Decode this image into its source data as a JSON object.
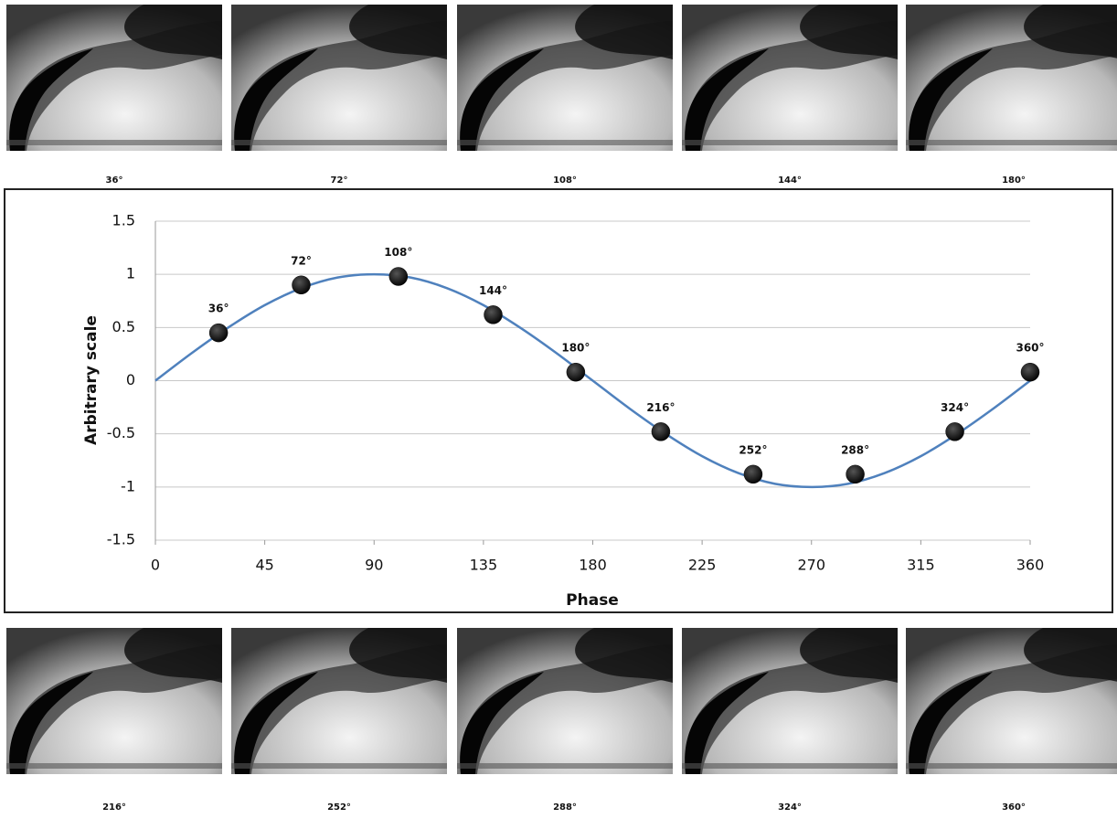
{
  "photo_captions_top": [
    "36°",
    "72°",
    "108°",
    "144°",
    "180°"
  ],
  "photo_captions_bottom": [
    "216°",
    "252°",
    "288°",
    "324°",
    "360°"
  ],
  "chart_data": {
    "type": "line",
    "ylabel": "Arbitrary scale",
    "xlabel": "Phase",
    "xlim": [
      0,
      360
    ],
    "ylim": [
      -1.5,
      1.5
    ],
    "xticks": [
      0,
      45,
      90,
      135,
      180,
      225,
      270,
      315,
      360
    ],
    "yticks": [
      1.5,
      1,
      0.5,
      0,
      -0.5,
      -1,
      -1.5
    ],
    "grid": true,
    "series": [
      {
        "color": "#4f81bd",
        "x": [
          0,
          15,
          30,
          45,
          60,
          75,
          90,
          105,
          120,
          135,
          150,
          165,
          180,
          195,
          210,
          225,
          240,
          255,
          270,
          285,
          300,
          315,
          330,
          345,
          360
        ],
        "values": [
          0,
          0.26,
          0.5,
          0.71,
          0.87,
          0.97,
          1,
          0.97,
          0.87,
          0.71,
          0.5,
          0.26,
          0,
          -0.26,
          -0.5,
          -0.71,
          -0.87,
          -0.97,
          -1,
          -0.97,
          -0.87,
          -0.71,
          -0.5,
          -0.26,
          0
        ]
      },
      {
        "color": "#0a0a0a",
        "markers_only": true,
        "x": [
          26,
          60,
          100,
          139,
          173,
          208,
          246,
          288,
          329,
          360
        ],
        "values": [
          0.45,
          0.9,
          0.98,
          0.62,
          0.08,
          -0.48,
          -0.88,
          -0.88,
          -0.48,
          0.08
        ],
        "value_labels": [
          "36°",
          "72°",
          "108°",
          "144°",
          "180°",
          "216°",
          "252°",
          "288°",
          "324°",
          "360°"
        ]
      }
    ]
  }
}
